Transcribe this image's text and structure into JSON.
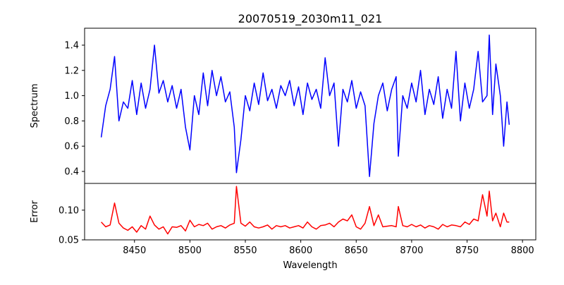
{
  "chart_data": [
    {
      "type": "line",
      "title": "20070519_2030m11_021",
      "xlabel": "",
      "ylabel": "Spectrum",
      "xlim": [
        8405,
        8812
      ],
      "ylim": [
        0.305,
        1.534
      ],
      "yticks": [
        0.4,
        0.6,
        0.8,
        1.0,
        1.2,
        1.4
      ],
      "ytick_labels": [
        "0.4",
        "0.6",
        "0.8",
        "1.0",
        "1.2",
        "1.4"
      ],
      "color": "#0000ff",
      "x": [
        8420,
        8424,
        8428,
        8432,
        8436,
        8440,
        8444,
        8448,
        8452,
        8456,
        8460,
        8464,
        8468,
        8472,
        8476,
        8480,
        8484,
        8488,
        8492,
        8496,
        8500,
        8504,
        8508,
        8512,
        8516,
        8520,
        8524,
        8528,
        8532,
        8536,
        8540,
        8542,
        8546,
        8550,
        8554,
        8558,
        8562,
        8566,
        8570,
        8574,
        8578,
        8582,
        8586,
        8590,
        8594,
        8598,
        8602,
        8606,
        8610,
        8614,
        8618,
        8622,
        8626,
        8630,
        8634,
        8638,
        8642,
        8646,
        8650,
        8654,
        8658,
        8662,
        8666,
        8670,
        8674,
        8678,
        8682,
        8686,
        8688,
        8692,
        8696,
        8700,
        8704,
        8708,
        8712,
        8716,
        8720,
        8724,
        8728,
        8732,
        8736,
        8740,
        8744,
        8748,
        8752,
        8756,
        8760,
        8764,
        8768,
        8770,
        8773,
        8776,
        8780,
        8783,
        8786,
        8788
      ],
      "y": [
        0.67,
        0.92,
        1.05,
        1.31,
        0.8,
        0.95,
        0.9,
        1.12,
        0.85,
        1.1,
        0.9,
        1.05,
        1.4,
        1.02,
        1.12,
        0.95,
        1.08,
        0.9,
        1.05,
        0.75,
        0.57,
        1.0,
        0.85,
        1.18,
        0.92,
        1.2,
        1.0,
        1.15,
        0.95,
        1.03,
        0.75,
        0.39,
        0.65,
        1.0,
        0.88,
        1.1,
        0.93,
        1.18,
        0.96,
        1.05,
        0.9,
        1.08,
        1.0,
        1.12,
        0.92,
        1.07,
        0.85,
        1.1,
        0.97,
        1.05,
        0.9,
        1.3,
        1.0,
        1.1,
        0.6,
        1.05,
        0.95,
        1.12,
        0.9,
        1.03,
        0.92,
        0.36,
        0.78,
        1.0,
        1.1,
        0.88,
        1.05,
        1.15,
        0.52,
        1.0,
        0.9,
        1.1,
        0.95,
        1.2,
        0.85,
        1.05,
        0.93,
        1.15,
        0.82,
        1.05,
        0.9,
        1.35,
        0.8,
        1.1,
        0.9,
        1.05,
        1.35,
        0.95,
        1.0,
        1.48,
        0.85,
        1.25,
        1.0,
        0.6,
        0.95,
        0.77
      ]
    },
    {
      "type": "line",
      "title": "",
      "xlabel": "Wavelength",
      "ylabel": "Error",
      "xlim": [
        8405,
        8812
      ],
      "ylim": [
        0.05,
        0.145
      ],
      "xticks": [
        8450,
        8500,
        8550,
        8600,
        8650,
        8700,
        8750,
        8800
      ],
      "xtick_labels": [
        "8450",
        "8500",
        "8550",
        "8600",
        "8650",
        "8700",
        "8750",
        "8800"
      ],
      "yticks": [
        0.05,
        0.1
      ],
      "ytick_labels": [
        "0.05",
        "0.10"
      ],
      "color": "#ff0000",
      "x": [
        8420,
        8424,
        8428,
        8432,
        8436,
        8440,
        8444,
        8448,
        8452,
        8456,
        8460,
        8464,
        8468,
        8472,
        8476,
        8480,
        8484,
        8488,
        8492,
        8496,
        8500,
        8504,
        8508,
        8512,
        8516,
        8520,
        8524,
        8528,
        8532,
        8536,
        8540,
        8542,
        8546,
        8550,
        8554,
        8558,
        8562,
        8566,
        8570,
        8574,
        8578,
        8582,
        8586,
        8590,
        8594,
        8598,
        8602,
        8606,
        8610,
        8614,
        8618,
        8622,
        8626,
        8630,
        8634,
        8638,
        8642,
        8646,
        8650,
        8654,
        8658,
        8662,
        8666,
        8670,
        8674,
        8678,
        8682,
        8686,
        8688,
        8692,
        8696,
        8700,
        8704,
        8708,
        8712,
        8716,
        8720,
        8724,
        8728,
        8732,
        8736,
        8740,
        8744,
        8748,
        8752,
        8756,
        8760,
        8764,
        8768,
        8770,
        8773,
        8776,
        8780,
        8783,
        8786,
        8788
      ],
      "y": [
        0.08,
        0.072,
        0.075,
        0.112,
        0.078,
        0.07,
        0.066,
        0.072,
        0.063,
        0.074,
        0.068,
        0.09,
        0.075,
        0.068,
        0.072,
        0.06,
        0.072,
        0.071,
        0.074,
        0.065,
        0.083,
        0.072,
        0.076,
        0.074,
        0.078,
        0.068,
        0.072,
        0.074,
        0.07,
        0.075,
        0.078,
        0.14,
        0.078,
        0.073,
        0.08,
        0.072,
        0.07,
        0.072,
        0.075,
        0.068,
        0.074,
        0.072,
        0.074,
        0.07,
        0.072,
        0.074,
        0.07,
        0.08,
        0.072,
        0.068,
        0.074,
        0.075,
        0.078,
        0.072,
        0.08,
        0.085,
        0.082,
        0.092,
        0.072,
        0.068,
        0.078,
        0.106,
        0.074,
        0.092,
        0.072,
        0.073,
        0.074,
        0.072,
        0.106,
        0.074,
        0.072,
        0.076,
        0.072,
        0.075,
        0.07,
        0.074,
        0.072,
        0.068,
        0.076,
        0.072,
        0.075,
        0.074,
        0.072,
        0.08,
        0.076,
        0.085,
        0.082,
        0.126,
        0.09,
        0.132,
        0.082,
        0.095,
        0.072,
        0.095,
        0.08,
        0.08
      ]
    }
  ]
}
